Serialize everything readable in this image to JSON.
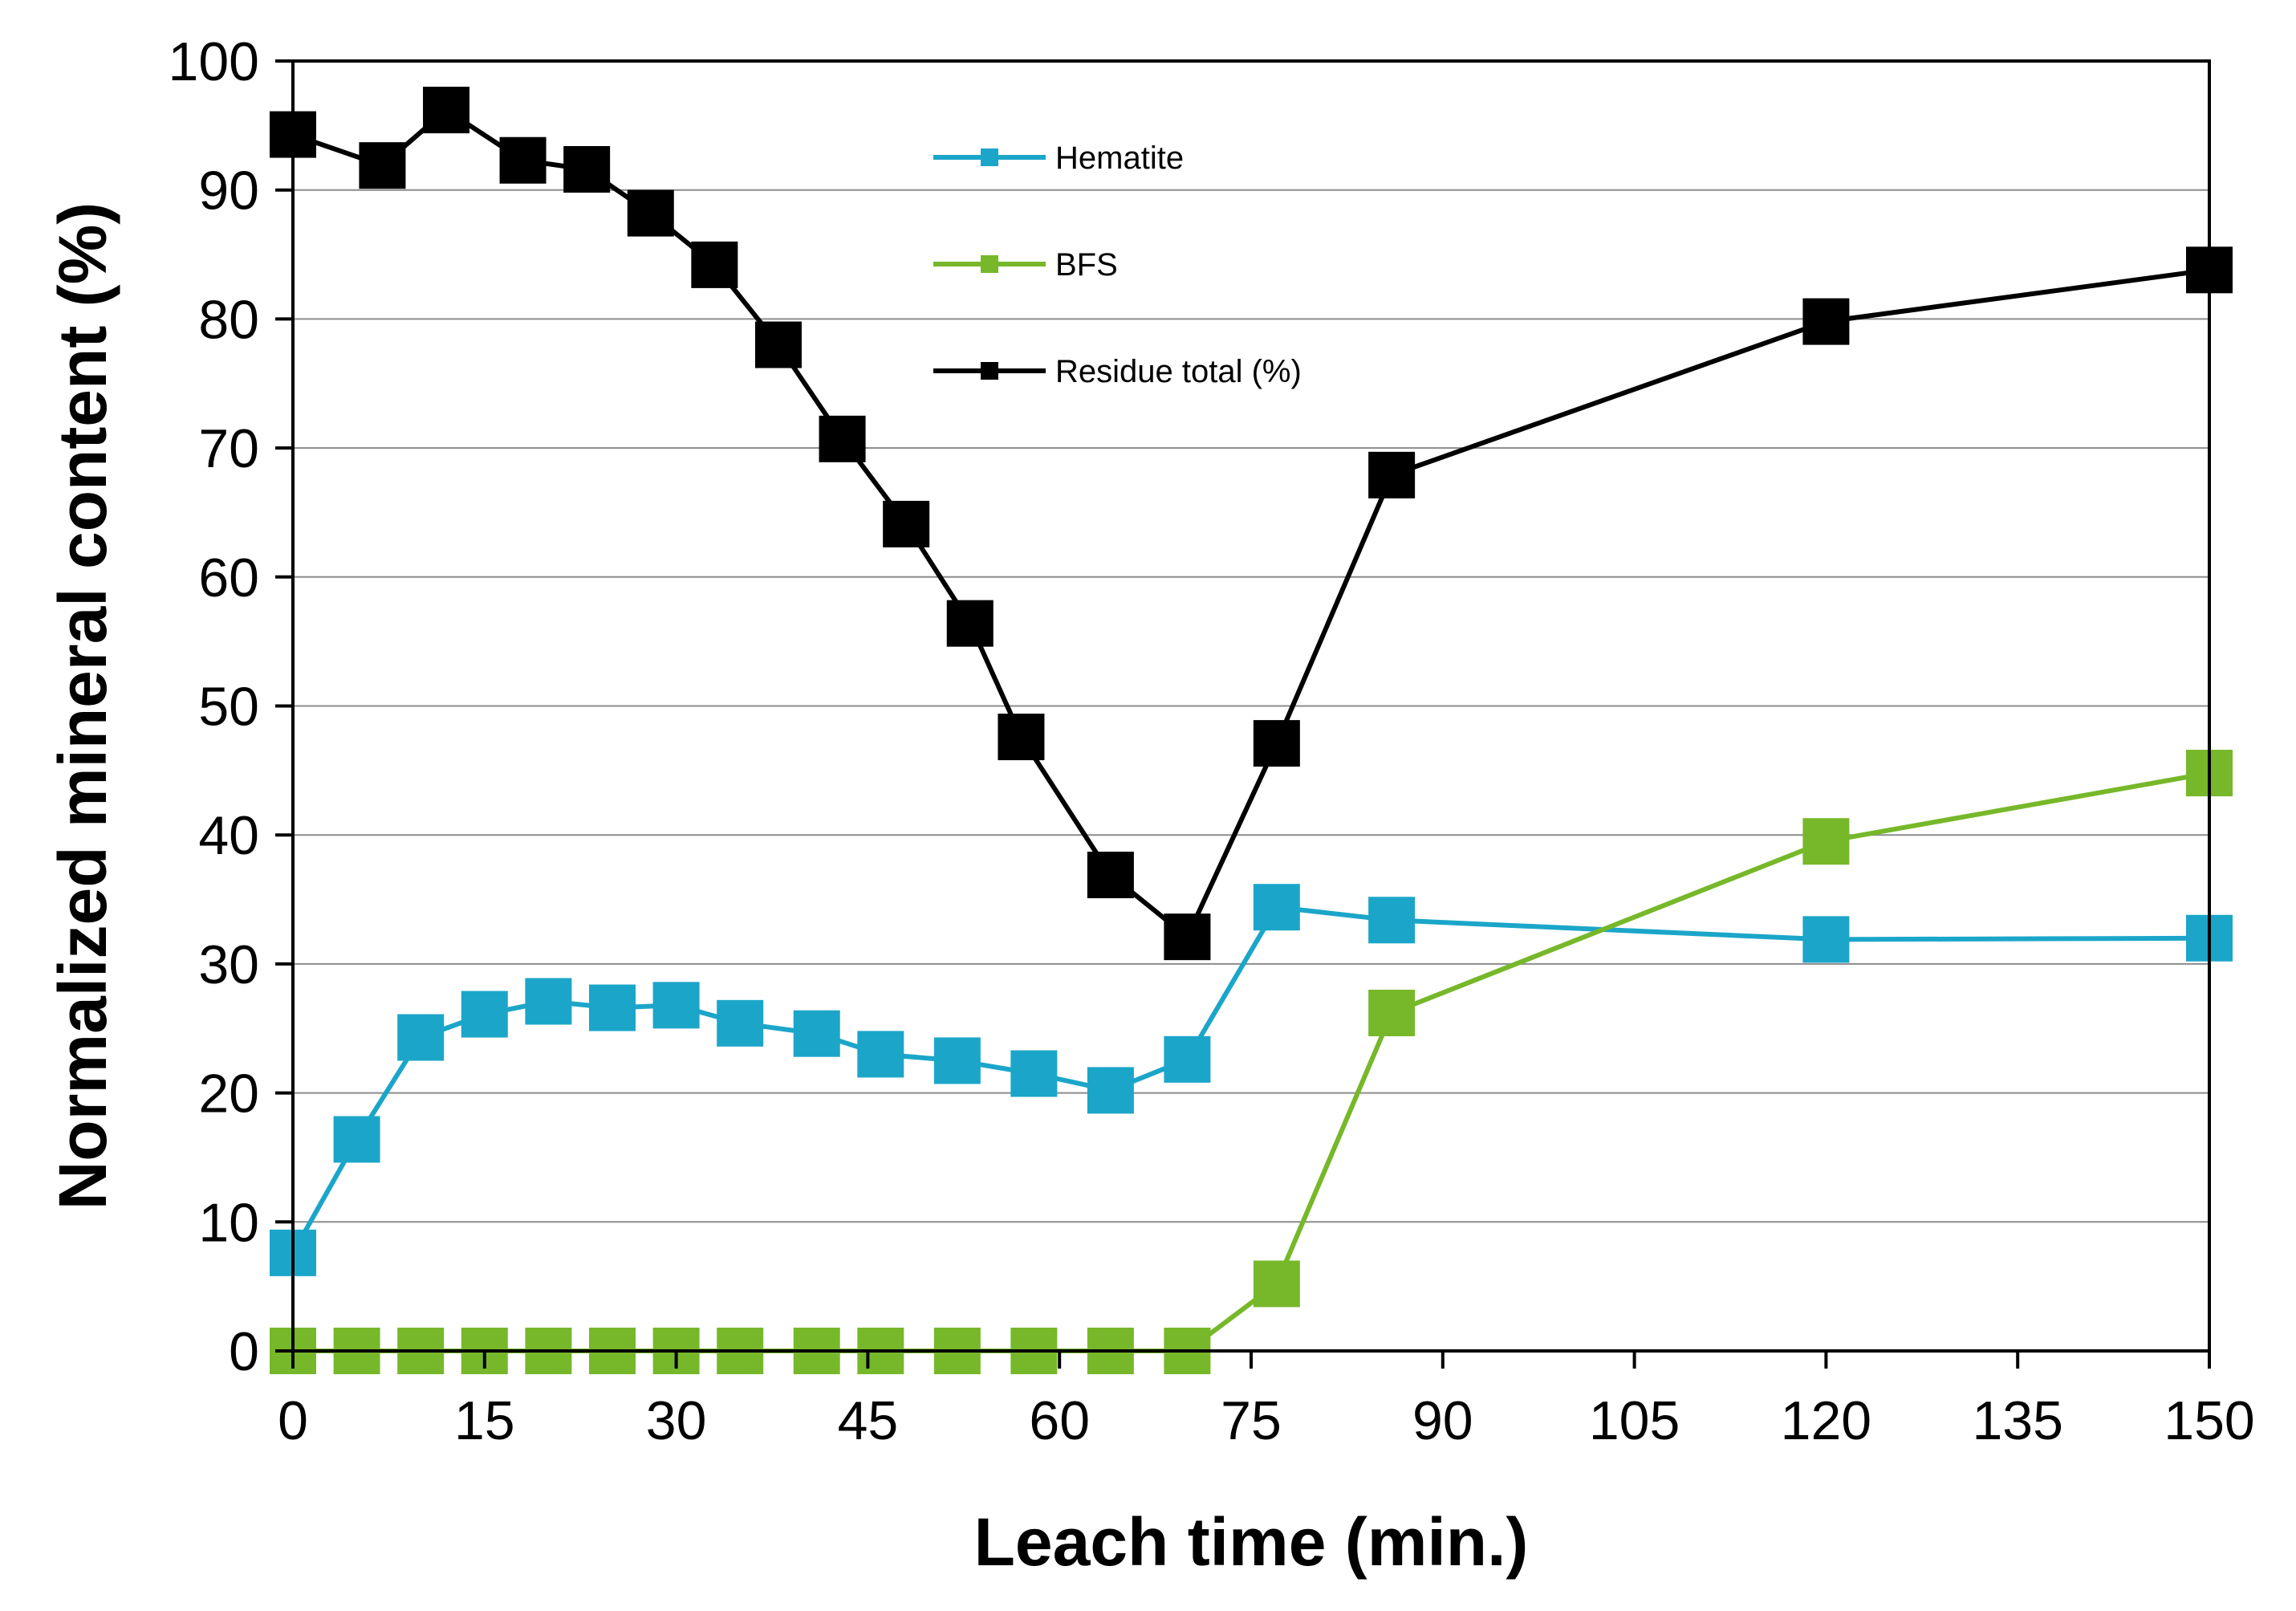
{
  "chart_data": {
    "type": "line",
    "title": "",
    "xlabel": "Leach time (min.)",
    "ylabel": "Normalized mineral content (%)",
    "xlim": [
      0,
      150
    ],
    "ylim": [
      0,
      100
    ],
    "xticks": [
      0,
      15,
      30,
      45,
      60,
      75,
      90,
      105,
      120,
      135,
      150
    ],
    "yticks": [
      0,
      10,
      20,
      30,
      40,
      50,
      60,
      70,
      80,
      90,
      100
    ],
    "grid": "horizontal",
    "legend_position": "top-center",
    "series": [
      {
        "name": "Hematite",
        "color": "#1BA6C9",
        "marker": "square",
        "x": [
          0,
          5,
          10,
          15,
          20,
          25,
          30,
          35,
          41,
          46,
          52,
          58,
          64,
          70,
          77,
          86,
          120,
          150
        ],
        "y": [
          7.6,
          16.4,
          24.3,
          26.1,
          27.1,
          26.6,
          26.8,
          25.4,
          24.6,
          23.0,
          22.5,
          21.5,
          20.2,
          22.6,
          34.4,
          33.4,
          31.9,
          32.0
        ]
      },
      {
        "name": "BFS",
        "color": "#77B82A",
        "marker": "square",
        "x": [
          0,
          5,
          10,
          15,
          20,
          25,
          30,
          35,
          41,
          46,
          52,
          58,
          64,
          70,
          77,
          86,
          120,
          150
        ],
        "y": [
          0,
          0,
          0,
          0,
          0,
          0,
          0,
          0,
          0,
          0,
          0,
          0,
          0,
          0,
          5.2,
          26.2,
          39.5,
          44.8
        ]
      },
      {
        "name": "Residue total (%)",
        "color": "#000000",
        "marker": "square",
        "x": [
          0,
          7,
          12,
          18,
          23,
          28,
          33,
          38,
          43,
          48,
          53,
          57,
          64,
          70,
          77,
          86,
          120,
          150
        ],
        "y": [
          94.3,
          91.9,
          96.2,
          92.3,
          91.6,
          88.2,
          84.2,
          78.0,
          70.7,
          64.1,
          56.4,
          47.6,
          36.9,
          32.1,
          47.1,
          67.9,
          79.8,
          83.8
        ]
      }
    ]
  }
}
